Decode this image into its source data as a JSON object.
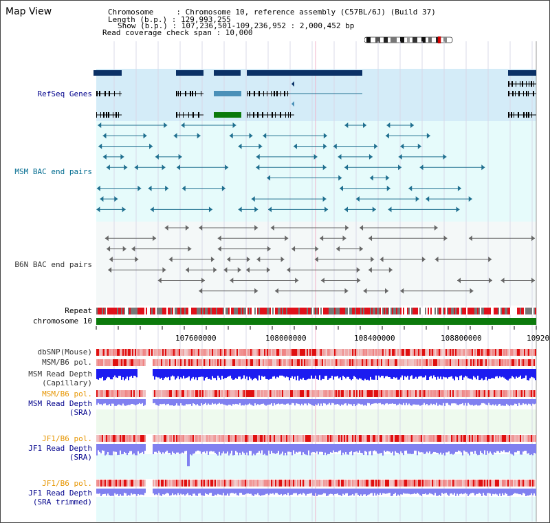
{
  "page": {
    "title": "Map View"
  },
  "header": {
    "chromosome_line": "Chromosome     : Chromosome 10, reference assembly (C57BL/6J) (Build 37)",
    "length_line": "Length (b.p.) : 129,993,255",
    "show_line": "Show (b.p.) : 107,236,501-109,236,952 : 2,000,452 bp",
    "coverage_line": "Read coverage check span : 10,000"
  },
  "tracks": {
    "refseq": "RefSeq Genes",
    "msm_bac": "MSM BAC end pairs",
    "b6n_bac": "B6N BAC end pairs",
    "repeat": "Repeat",
    "chromosome": "chromosome 10",
    "dbsnp": "dbSNP(Mouse)",
    "msm_b6_pol": "MSM/B6 pol.",
    "msm_depth_cap_1": "MSM Read Depth",
    "msm_depth_cap_2": "(Capillary)",
    "msm_b6_pol_2": "MSM/B6 pol.",
    "msm_depth_sra_1": "MSM Read Depth",
    "msm_depth_sra_2": "(SRA)",
    "jf1_b6_pol": "JF1/B6 pol.",
    "jf1_depth_sra_1": "JF1 Read Depth",
    "jf1_depth_sra_2": "(SRA)",
    "jf1_b6_pol_2": "JF1/B6 pol.",
    "jf1_depth_trim_1": "JF1 Read Depth",
    "jf1_depth_trim_2": "(SRA trimmed)"
  },
  "scale": {
    "ticks": [
      "107600000",
      "108000000",
      "108400000",
      "108800000",
      "10920"
    ]
  },
  "colors": {
    "refseq_bg": "#d4ecf8",
    "msm_bg": "#e6fbfb",
    "b6n_bg": "#f4f8f8",
    "gene_navy": "#0b3166",
    "gene_blue": "#4a90b8",
    "gene_green": "#0a7a0a",
    "msm_pair": "#1f6f8f",
    "b6n_pair": "#666666",
    "repeat_red": "#e0101a",
    "chrom_green": "#0c7a0c",
    "depth_blue": "#1c1cf0",
    "depth_light": "#8080f0",
    "pol_red": "#ee2222"
  }
}
